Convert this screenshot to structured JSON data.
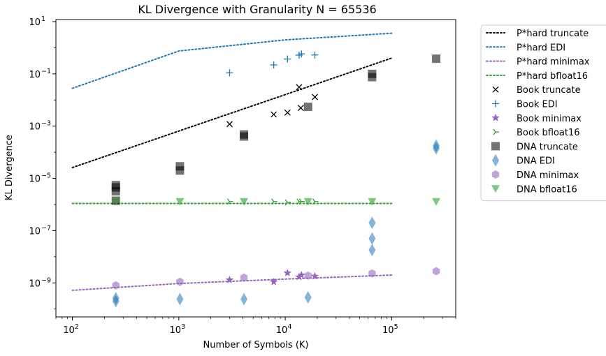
{
  "chart_data": {
    "type": "scatter",
    "title": "KL Divergence with Granularity N = 65536",
    "xlabel": "Number of Symbols (K)",
    "ylabel": "KL Divergence",
    "x_scale": "log",
    "y_scale": "log",
    "xlim": [
      70,
      400000
    ],
    "ylim": [
      5e-11,
      12
    ],
    "x_ticks": [
      {
        "value": 100,
        "base": "10",
        "exp": "2"
      },
      {
        "value": 1000,
        "base": "10",
        "exp": "3"
      },
      {
        "value": 10000,
        "base": "10",
        "exp": "4"
      },
      {
        "value": 100000,
        "base": "10",
        "exp": "5"
      }
    ],
    "y_ticks": [
      {
        "value": 10,
        "base": "10",
        "exp": "1"
      },
      {
        "value": 0.1,
        "base": "10",
        "exp": "−1"
      },
      {
        "value": 0.001,
        "base": "10",
        "exp": "−3"
      },
      {
        "value": 1e-05,
        "base": "10",
        "exp": "−5"
      },
      {
        "value": 1e-07,
        "base": "10",
        "exp": "−7"
      },
      {
        "value": 1e-09,
        "base": "10",
        "exp": "−9"
      }
    ],
    "grid": false,
    "legend_position": "outside-right",
    "series": [
      {
        "name": "P*hard truncate",
        "kind": "line",
        "style": "dotted",
        "color": "#000000",
        "x": [
          100,
          100000
        ],
        "y": [
          2.6e-05,
          0.4
        ]
      },
      {
        "name": "P*hard EDI",
        "kind": "line",
        "style": "dotted",
        "color": "#1f77b4",
        "x": [
          100,
          1000,
          10000,
          100000
        ],
        "y": [
          0.028,
          0.75,
          2.0,
          3.6
        ]
      },
      {
        "name": "P*hard minimax",
        "kind": "line",
        "style": "dotted",
        "color": "#9467bd",
        "x": [
          100,
          1000,
          10000,
          100000
        ],
        "y": [
          5.2e-10,
          9.5e-10,
          1.4e-09,
          2e-09
        ]
      },
      {
        "name": "P*hard bfloat16",
        "kind": "line",
        "style": "dotted",
        "color": "#2ca02c",
        "x": [
          100,
          100000
        ],
        "y": [
          1.1e-06,
          1.1e-06
        ]
      },
      {
        "name": "Book truncate",
        "kind": "marker",
        "marker": "x",
        "color": "#000000",
        "x": [
          3000,
          7800,
          10500,
          13500,
          14000,
          19000
        ],
        "y": [
          0.0012,
          0.0028,
          0.0033,
          0.031,
          0.005,
          0.013
        ]
      },
      {
        "name": "Book EDI",
        "kind": "marker",
        "marker": "plus",
        "color": "#1f77b4",
        "x": [
          3000,
          7800,
          10500,
          13500,
          14200,
          19000
        ],
        "y": [
          0.11,
          0.22,
          0.37,
          0.52,
          0.58,
          0.53
        ]
      },
      {
        "name": "Book minimax",
        "kind": "marker",
        "marker": "star",
        "color": "#9467bd",
        "x": [
          3000,
          7800,
          10500,
          13500,
          14200,
          19000
        ],
        "y": [
          1.3e-09,
          1.1e-09,
          2.4e-09,
          1.7e-09,
          2e-09,
          1.8e-09
        ]
      },
      {
        "name": "Book bfloat16",
        "kind": "marker",
        "marker": "tri",
        "color": "#2ca02c",
        "x": [
          3000,
          7800,
          10500,
          13500,
          14200,
          19000
        ],
        "y": [
          1.3e-06,
          1.3e-06,
          1.2e-06,
          1.3e-06,
          1.3e-06,
          1.3e-06
        ]
      },
      {
        "name": "DNA truncate",
        "kind": "marker",
        "marker": "square",
        "color": "#000000",
        "x": [
          256,
          256,
          256,
          256,
          1024,
          1024,
          4096,
          4096,
          16384,
          65536,
          65536,
          262144
        ],
        "y": [
          1.4e-06,
          3.2e-06,
          4.5e-06,
          5.5e-06,
          2e-05,
          2.9e-05,
          0.0004,
          0.00048,
          0.0055,
          0.075,
          0.1,
          0.38
        ]
      },
      {
        "name": "DNA EDI",
        "kind": "marker",
        "marker": "diamond",
        "color": "#1f77b4",
        "x": [
          256,
          256,
          1024,
          4096,
          16384,
          65536,
          65536,
          65536,
          262144,
          262144
        ],
        "y": [
          2e-10,
          2.6e-10,
          2.4e-10,
          2.4e-10,
          2.8e-10,
          1.8e-08,
          5e-08,
          2e-07,
          0.00014,
          0.00018
        ]
      },
      {
        "name": "DNA minimax",
        "kind": "marker",
        "marker": "hexagon",
        "color": "#9467bd",
        "x": [
          256,
          1024,
          4096,
          16384,
          65536,
          262144
        ],
        "y": [
          8e-10,
          1.1e-09,
          1.6e-09,
          1.9e-09,
          2.3e-09,
          2.8e-09
        ]
      },
      {
        "name": "DNA bfloat16",
        "kind": "marker",
        "marker": "tri_down",
        "color": "#2ca02c",
        "x": [
          256,
          1024,
          4096,
          16384,
          65536,
          262144
        ],
        "y": [
          1.3e-06,
          1.3e-06,
          1.3e-06,
          1.3e-06,
          1.3e-06,
          1.3e-06
        ]
      }
    ]
  }
}
